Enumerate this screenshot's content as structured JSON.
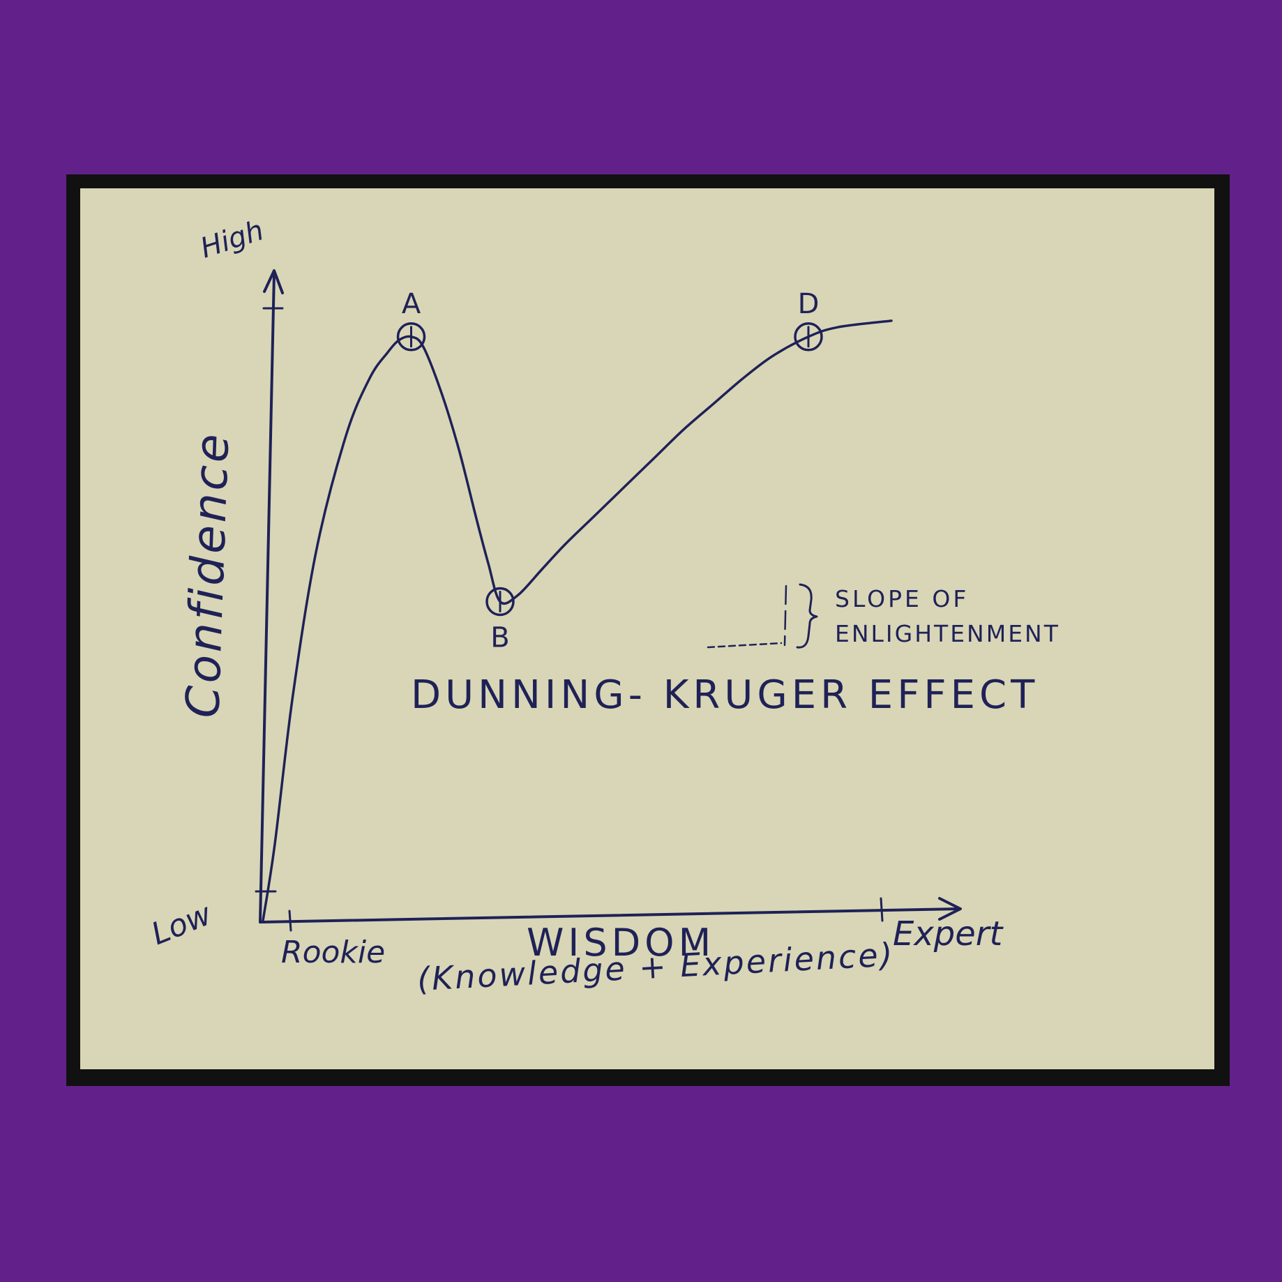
{
  "chart_data": {
    "type": "line",
    "title": "DUNNING- KRUGER EFFECT",
    "xlabel": "WISDOM",
    "xlabel_sub": "(Knowledge + Experience)",
    "ylabel": "Confidence",
    "x_ticks": [
      "Rookie",
      "Expert"
    ],
    "y_ticks": [
      "Low",
      "High"
    ],
    "xlim": [
      0,
      100
    ],
    "ylim": [
      0,
      100
    ],
    "grid": false,
    "x": [
      0,
      2,
      5,
      9,
      14,
      18,
      21,
      23,
      25,
      27,
      30,
      33,
      36,
      38,
      40,
      43,
      47,
      51,
      56,
      61,
      66,
      71,
      76,
      81,
      86,
      92,
      97,
      106
    ],
    "values": [
      0,
      12,
      35,
      58,
      76,
      85,
      89,
      91,
      91.5,
      90,
      83,
      74,
      63,
      56,
      50,
      51,
      55,
      59,
      63.5,
      68,
      72.5,
      77,
      81,
      85,
      88.5,
      91.5,
      93,
      94
    ],
    "points": [
      {
        "label": "A",
        "x": 25,
        "y": 91.5
      },
      {
        "label": "B",
        "x": 40,
        "y": 50
      },
      {
        "label": "D",
        "x": 92,
        "y": 91.5
      }
    ],
    "annotation": {
      "text_line1": "SLOPE OF",
      "text_line2": "ENLIGHTENMENT"
    }
  }
}
